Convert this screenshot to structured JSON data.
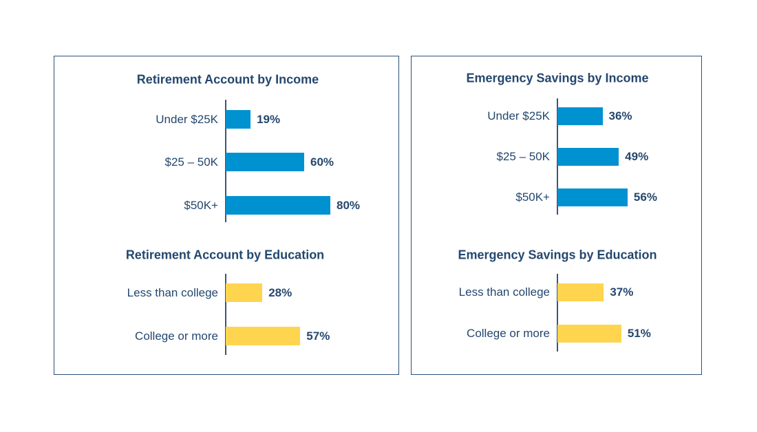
{
  "colors": {
    "income": "#0091d0",
    "education": "#ffd44f",
    "text": "#24476e",
    "border": "#2a4f78"
  },
  "chart_data": [
    {
      "type": "bar",
      "orientation": "horizontal",
      "title": "Retirement Account by Income",
      "categories": [
        "Under $25K",
        "$25 – 50K",
        "$50K+"
      ],
      "values": [
        19,
        60,
        80
      ],
      "labels": [
        "19%",
        "60%",
        "80%"
      ],
      "color": "income"
    },
    {
      "type": "bar",
      "orientation": "horizontal",
      "title": "Retirement Account by Education",
      "categories": [
        "Less than college",
        "College or more"
      ],
      "values": [
        28,
        57
      ],
      "labels": [
        "28%",
        "57%"
      ],
      "color": "education"
    },
    {
      "type": "bar",
      "orientation": "horizontal",
      "title": "Emergency Savings by Income",
      "categories": [
        "Under $25K",
        "$25 – 50K",
        "$50K+"
      ],
      "values": [
        36,
        49,
        56
      ],
      "labels": [
        "36%",
        "49%",
        "56%"
      ],
      "color": "income"
    },
    {
      "type": "bar",
      "orientation": "horizontal",
      "title": "Emergency Savings by Education",
      "categories": [
        "Less than college",
        "College or more"
      ],
      "values": [
        37,
        51
      ],
      "labels": [
        "37%",
        "51%"
      ],
      "color": "education"
    }
  ]
}
